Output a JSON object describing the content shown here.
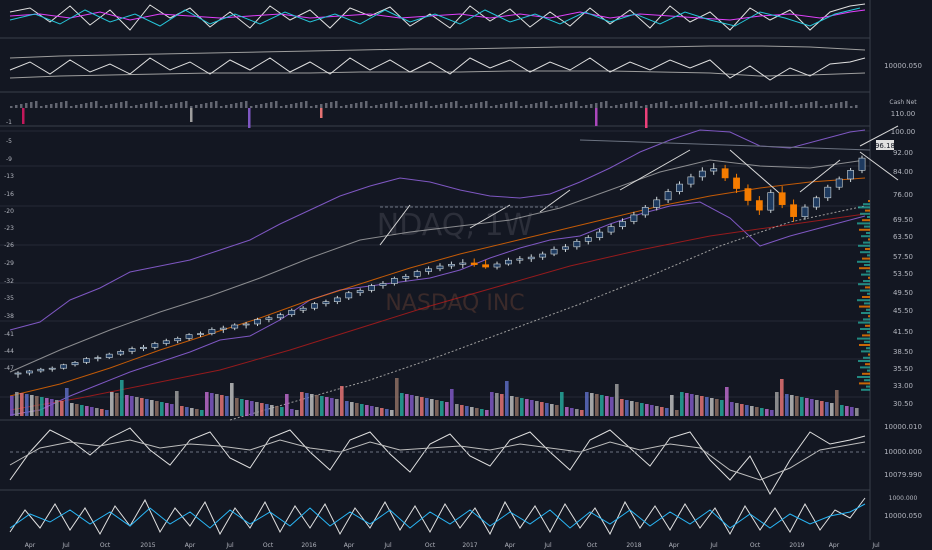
{
  "chart_data": {
    "type": "candlestick",
    "watermark": {
      "symbol": "NDAQ, 1W",
      "company": "NASDAQ INC"
    },
    "last_price": "96.18",
    "time_labels": [
      "Apr",
      "Jul",
      "Oct",
      "2015",
      "Apr",
      "Jul",
      "Oct",
      "2016",
      "Apr",
      "Jul",
      "Oct",
      "2017",
      "Apr",
      "Jul",
      "Oct",
      "2018",
      "Apr",
      "Jul",
      "Oct",
      "2019",
      "Apr",
      "Jul"
    ],
    "price_axis_labels": [
      "100.00",
      "92.00",
      "84.00",
      "76.00",
      "69.50",
      "63.50",
      "57.50",
      "53.50",
      "49.50",
      "45.50",
      "41.50",
      "38.50",
      "35.50",
      "33.00",
      "30.50"
    ],
    "left_axis_labels": [
      "-1",
      "-5",
      "-9",
      "-13",
      "-16",
      "-20",
      "-23",
      "-26",
      "-29",
      "-32",
      "-35",
      "-38",
      "-41",
      "-44",
      "-47"
    ],
    "panels": {
      "rsi_top_label": "",
      "osc2_label": "10000.050",
      "hist_label": "Cash Net",
      "hist_value": "110.00",
      "macd_labels": [
        "10000.010",
        "10000.000",
        "10079.990"
      ],
      "stoch_labels": [
        "1000.000",
        "10000.050"
      ]
    },
    "ohlc": [
      [
        0.0,
        33.2,
        34.0,
        32.1,
        33.5
      ],
      [
        1.0,
        33.5,
        34.4,
        32.8,
        34.1
      ],
      [
        2.0,
        34.1,
        35.0,
        33.6,
        34.6
      ],
      [
        3.0,
        34.6,
        35.4,
        33.9,
        34.9
      ],
      [
        4.0,
        34.9,
        36.2,
        34.5,
        35.9
      ],
      [
        5.0,
        35.9,
        37.0,
        35.4,
        36.6
      ],
      [
        6.0,
        36.6,
        38.1,
        36.1,
        37.7
      ],
      [
        7.0,
        37.7,
        38.6,
        36.9,
        38.0
      ],
      [
        8.0,
        38.0,
        39.4,
        37.6,
        39.0
      ],
      [
        9.0,
        39.0,
        40.3,
        38.5,
        39.8
      ],
      [
        10.0,
        39.8,
        41.2,
        39.0,
        40.6
      ],
      [
        11.0,
        40.6,
        41.7,
        39.9,
        41.0
      ],
      [
        12.0,
        41.0,
        42.6,
        40.4,
        42.1
      ],
      [
        13.0,
        42.1,
        43.5,
        41.5,
        42.9
      ],
      [
        14.0,
        42.9,
        44.1,
        42.2,
        43.6
      ],
      [
        15.0,
        43.6,
        45.1,
        43.0,
        44.7
      ],
      [
        16.0,
        44.7,
        45.6,
        44.0,
        45.0
      ],
      [
        17.0,
        45.0,
        46.8,
        44.5,
        46.2
      ],
      [
        18.0,
        46.2,
        47.3,
        45.2,
        46.6
      ],
      [
        19.0,
        46.6,
        48.0,
        46.0,
        47.5
      ],
      [
        20.0,
        47.5,
        48.4,
        46.5,
        47.8
      ],
      [
        21.0,
        47.8,
        49.6,
        47.2,
        49.1
      ],
      [
        22.0,
        49.1,
        50.2,
        48.3,
        49.6
      ],
      [
        23.0,
        49.6,
        51.1,
        49.0,
        50.5
      ],
      [
        24.0,
        50.5,
        52.3,
        49.9,
        51.8
      ],
      [
        25.0,
        51.8,
        53.0,
        51.0,
        52.4
      ],
      [
        26.0,
        52.4,
        54.2,
        51.8,
        53.7
      ],
      [
        27.0,
        53.7,
        54.9,
        52.9,
        54.3
      ],
      [
        28.0,
        54.3,
        56.0,
        53.6,
        55.4
      ],
      [
        29.0,
        55.4,
        57.4,
        54.8,
        56.9
      ],
      [
        30.0,
        56.9,
        58.2,
        56.0,
        57.6
      ],
      [
        31.0,
        57.6,
        59.5,
        57.0,
        59.0
      ],
      [
        32.0,
        59.0,
        60.3,
        58.1,
        59.6
      ],
      [
        33.0,
        59.6,
        61.6,
        59.0,
        61.1
      ],
      [
        34.0,
        61.1,
        62.4,
        60.2,
        61.7
      ],
      [
        35.0,
        61.7,
        63.6,
        61.1,
        63.1
      ],
      [
        36.0,
        63.1,
        64.6,
        62.2,
        63.9
      ],
      [
        37.0,
        63.9,
        65.5,
        63.2,
        64.7
      ],
      [
        38.0,
        64.7,
        66.0,
        63.9,
        65.2
      ],
      [
        39.0,
        65.2,
        66.7,
        64.1,
        65.6
      ],
      [
        40.0,
        65.6,
        66.9,
        64.5,
        65.1
      ],
      [
        41.0,
        65.1,
        66.5,
        63.9,
        64.4
      ],
      [
        42.0,
        64.4,
        66.0,
        63.7,
        65.3
      ],
      [
        43.0,
        65.3,
        67.1,
        64.8,
        66.4
      ],
      [
        44.0,
        66.4,
        67.6,
        65.4,
        66.8
      ],
      [
        45.0,
        66.8,
        68.1,
        65.9,
        67.3
      ],
      [
        46.0,
        67.3,
        68.9,
        66.5,
        68.2
      ],
      [
        47.0,
        68.2,
        70.4,
        67.6,
        69.6
      ],
      [
        48.0,
        69.6,
        71.1,
        68.8,
        70.3
      ],
      [
        49.0,
        70.3,
        72.6,
        69.5,
        71.9
      ],
      [
        50.0,
        71.9,
        73.7,
        71.0,
        73.0
      ],
      [
        51.0,
        73.0,
        75.5,
        72.2,
        74.6
      ],
      [
        52.0,
        74.6,
        77.0,
        73.8,
        76.2
      ],
      [
        53.0,
        76.2,
        78.6,
        75.4,
        77.7
      ],
      [
        54.0,
        77.7,
        80.5,
        76.9,
        79.6
      ],
      [
        55.0,
        79.6,
        82.5,
        78.8,
        81.8
      ],
      [
        56.0,
        81.8,
        84.9,
        80.9,
        84.0
      ],
      [
        57.0,
        84.0,
        87.2,
        83.1,
        86.4
      ],
      [
        58.0,
        86.4,
        89.4,
        85.6,
        88.6
      ],
      [
        59.0,
        88.6,
        91.6,
        87.6,
        90.7
      ],
      [
        60.0,
        90.7,
        93.5,
        89.6,
        92.4
      ],
      [
        61.0,
        92.4,
        94.7,
        91.3,
        93.1
      ],
      [
        62.0,
        93.1,
        94.2,
        89.5,
        90.4
      ],
      [
        63.0,
        90.4,
        91.6,
        86.0,
        87.3
      ],
      [
        64.0,
        87.3,
        88.5,
        82.4,
        83.8
      ],
      [
        65.0,
        83.8,
        85.1,
        79.6,
        81.0
      ],
      [
        66.0,
        81.0,
        87.0,
        80.2,
        86.1
      ],
      [
        67.0,
        86.1,
        88.0,
        81.6,
        82.6
      ],
      [
        68.0,
        82.6,
        84.1,
        77.6,
        79.1
      ],
      [
        69.0,
        79.1,
        82.7,
        78.2,
        81.9
      ],
      [
        70.0,
        81.9,
        85.2,
        81.1,
        84.6
      ],
      [
        71.0,
        84.6,
        88.4,
        83.7,
        87.7
      ],
      [
        72.0,
        87.7,
        90.8,
        86.9,
        90.1
      ],
      [
        73.0,
        90.1,
        93.3,
        89.2,
        92.6
      ],
      [
        74.0,
        92.6,
        96.9,
        91.8,
        96.18
      ]
    ]
  }
}
